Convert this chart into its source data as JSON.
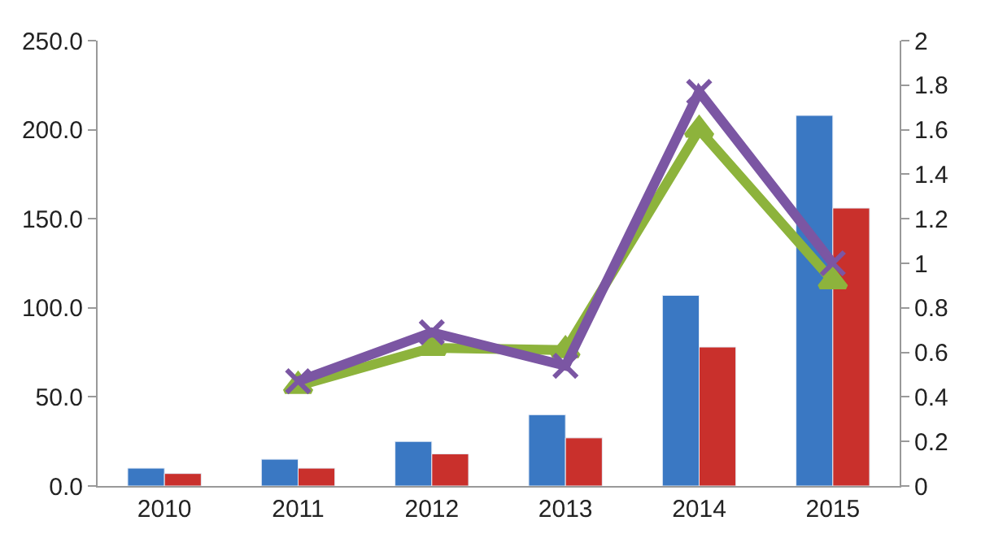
{
  "chart_data": {
    "type": "bar",
    "categories": [
      "2010",
      "2011",
      "2012",
      "2013",
      "2014",
      "2015"
    ],
    "series": [
      {
        "color": "#3a78c3",
        "values": [
          10,
          15,
          25,
          40,
          107,
          208
        ]
      },
      {
        "color": "#c9302c",
        "values": [
          7,
          10,
          18,
          27,
          78,
          156
        ]
      },
      {
        "type": "line",
        "axis": "y2",
        "color": "#8db33c",
        "marker": "triangle",
        "values": [
          null,
          0.45,
          0.62,
          0.61,
          1.6,
          0.92
        ]
      },
      {
        "type": "line",
        "axis": "y2",
        "color": "#7b56a3",
        "marker": "cross",
        "values": [
          null,
          0.47,
          0.69,
          0.54,
          1.77,
          1.0
        ]
      }
    ],
    "ylim": [
      0,
      250
    ],
    "yticks": [
      {
        "value": 0,
        "label": "0.0"
      },
      {
        "value": 50,
        "label": "50.0"
      },
      {
        "value": 100,
        "label": "100.0"
      },
      {
        "value": 150,
        "label": "150.0"
      },
      {
        "value": 200,
        "label": "200.0"
      },
      {
        "value": 250,
        "label": "250.0"
      }
    ],
    "y2lim": [
      0,
      2
    ],
    "y2ticks": [
      0,
      0.2,
      0.4,
      0.6,
      0.8,
      1,
      1.2,
      1.4,
      1.6,
      1.8,
      2
    ],
    "legend": false
  }
}
